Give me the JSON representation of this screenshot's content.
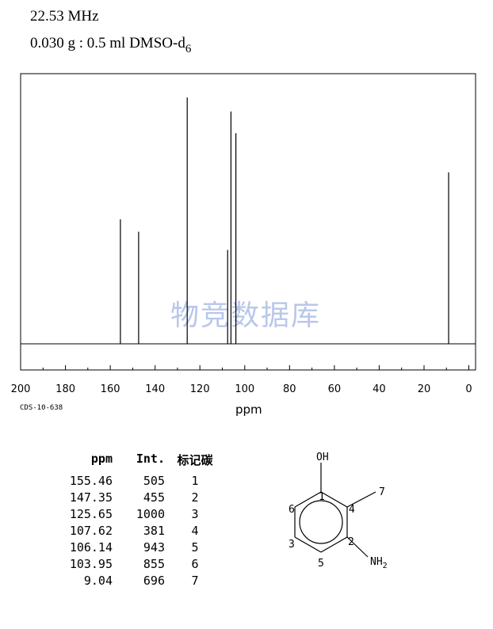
{
  "header": {
    "frequency": "22.53 MHz",
    "sample_prefix": "0.030 g : 0.5 ml DMSO-d",
    "sample_subscript": "6"
  },
  "chart_data": {
    "type": "nmr-stick-spectrum",
    "xlabel": "ppm",
    "xlim": [
      200,
      -3
    ],
    "x_ticks": [
      200,
      180,
      160,
      140,
      120,
      100,
      80,
      60,
      40,
      20,
      0
    ],
    "x_reversed": true,
    "peaks": [
      {
        "ppm": 155.46,
        "intensity": 505
      },
      {
        "ppm": 147.35,
        "intensity": 455
      },
      {
        "ppm": 125.65,
        "intensity": 1000
      },
      {
        "ppm": 107.62,
        "intensity": 381
      },
      {
        "ppm": 106.14,
        "intensity": 943
      },
      {
        "ppm": 103.95,
        "intensity": 855
      },
      {
        "ppm": 9.04,
        "intensity": 696
      }
    ],
    "grid": false
  },
  "watermark": "物竞数据库",
  "catalog_code": "CDS-10-638",
  "table": {
    "headers": {
      "ppm": "ppm",
      "int": "Int.",
      "assign": "标记碳"
    },
    "rows": [
      {
        "ppm": "155.46",
        "int": "505",
        "assign": "1"
      },
      {
        "ppm": "147.35",
        "int": "455",
        "assign": "2"
      },
      {
        "ppm": "125.65",
        "int": "1000",
        "assign": "3"
      },
      {
        "ppm": "107.62",
        "int": "381",
        "assign": "4"
      },
      {
        "ppm": "106.14",
        "int": "943",
        "assign": "5"
      },
      {
        "ppm": "103.95",
        "int": "855",
        "assign": "6"
      },
      {
        "ppm": "9.04",
        "int": "696",
        "assign": "7"
      }
    ]
  },
  "molecule": {
    "oh": "OH",
    "nh": "NH",
    "nh_sub": "2",
    "labels": [
      "1",
      "2",
      "3",
      "4",
      "5",
      "6",
      "7"
    ]
  }
}
